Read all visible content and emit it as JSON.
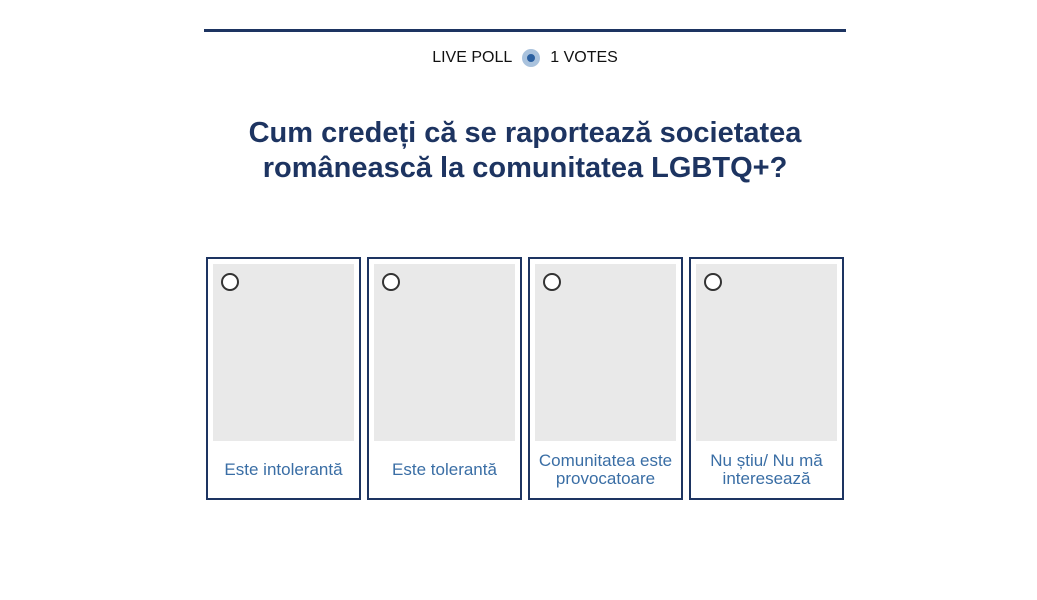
{
  "header": {
    "live_label": "LIVE POLL",
    "votes": "1 VOTES",
    "live_icon": "live-indicator-icon"
  },
  "poll": {
    "question": "Cum credeți că se raportează societatea românească la comunitatea LGBTQ+?",
    "options": [
      {
        "label": "Este intolerantă"
      },
      {
        "label": "Este tolerantă"
      },
      {
        "label": "Comunitatea este provocatoare"
      },
      {
        "label": "Nu știu/ Nu mă interesează"
      }
    ]
  },
  "colors": {
    "accent": "#1d3461",
    "option_text": "#3a6ea5"
  }
}
